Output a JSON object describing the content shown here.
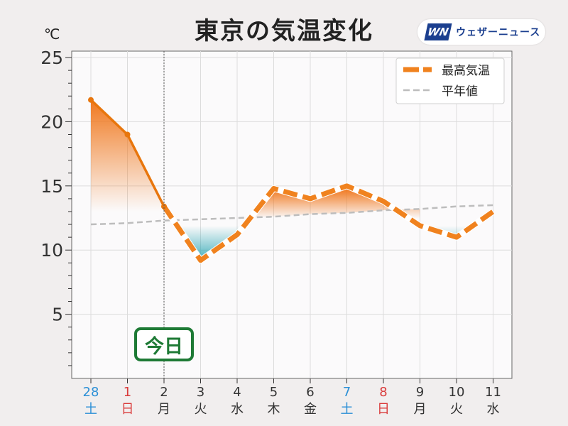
{
  "title": "東京の気温変化",
  "logo": {
    "mark": "WN",
    "text": "ウェザーニュース"
  },
  "unit": "℃",
  "today_label": "今日",
  "colors": {
    "high": "#f0821e",
    "high_dark": "#e8760d",
    "normal": "#bdbdbd",
    "teal": "#1a9fad",
    "today": "#1e7a35",
    "saturday": "#2b8fd6",
    "holiday": "#d93a3a",
    "weekday": "#333333"
  },
  "chart_data": {
    "type": "line",
    "title": "東京の気温変化",
    "ylim": [
      0,
      25.5
    ],
    "yticks": [
      5,
      10,
      15,
      20,
      25
    ],
    "grid": true,
    "legend_position": "top-right",
    "today_index": 2,
    "categories": [
      {
        "day": "28",
        "weekday": "土",
        "type": "saturday"
      },
      {
        "day": "1",
        "weekday": "日",
        "type": "holiday"
      },
      {
        "day": "2",
        "weekday": "月",
        "type": "weekday"
      },
      {
        "day": "3",
        "weekday": "火",
        "type": "weekday"
      },
      {
        "day": "4",
        "weekday": "水",
        "type": "weekday"
      },
      {
        "day": "5",
        "weekday": "木",
        "type": "weekday"
      },
      {
        "day": "6",
        "weekday": "金",
        "type": "weekday"
      },
      {
        "day": "7",
        "weekday": "土",
        "type": "saturday"
      },
      {
        "day": "8",
        "weekday": "日",
        "type": "holiday"
      },
      {
        "day": "9",
        "weekday": "月",
        "type": "weekday"
      },
      {
        "day": "10",
        "weekday": "火",
        "type": "weekday"
      },
      {
        "day": "11",
        "weekday": "水",
        "type": "weekday"
      }
    ],
    "series": [
      {
        "name": "最高気温",
        "style": "dashed-thick",
        "values": [
          21.7,
          19.0,
          13.4,
          9.2,
          11.2,
          14.8,
          14.0,
          15.0,
          13.8,
          11.9,
          11.0,
          13.0
        ]
      },
      {
        "name": "平年値",
        "style": "dashed",
        "values": [
          12.0,
          12.1,
          12.3,
          12.4,
          12.5,
          12.6,
          12.8,
          12.9,
          13.1,
          13.2,
          13.4,
          13.5
        ]
      }
    ]
  }
}
